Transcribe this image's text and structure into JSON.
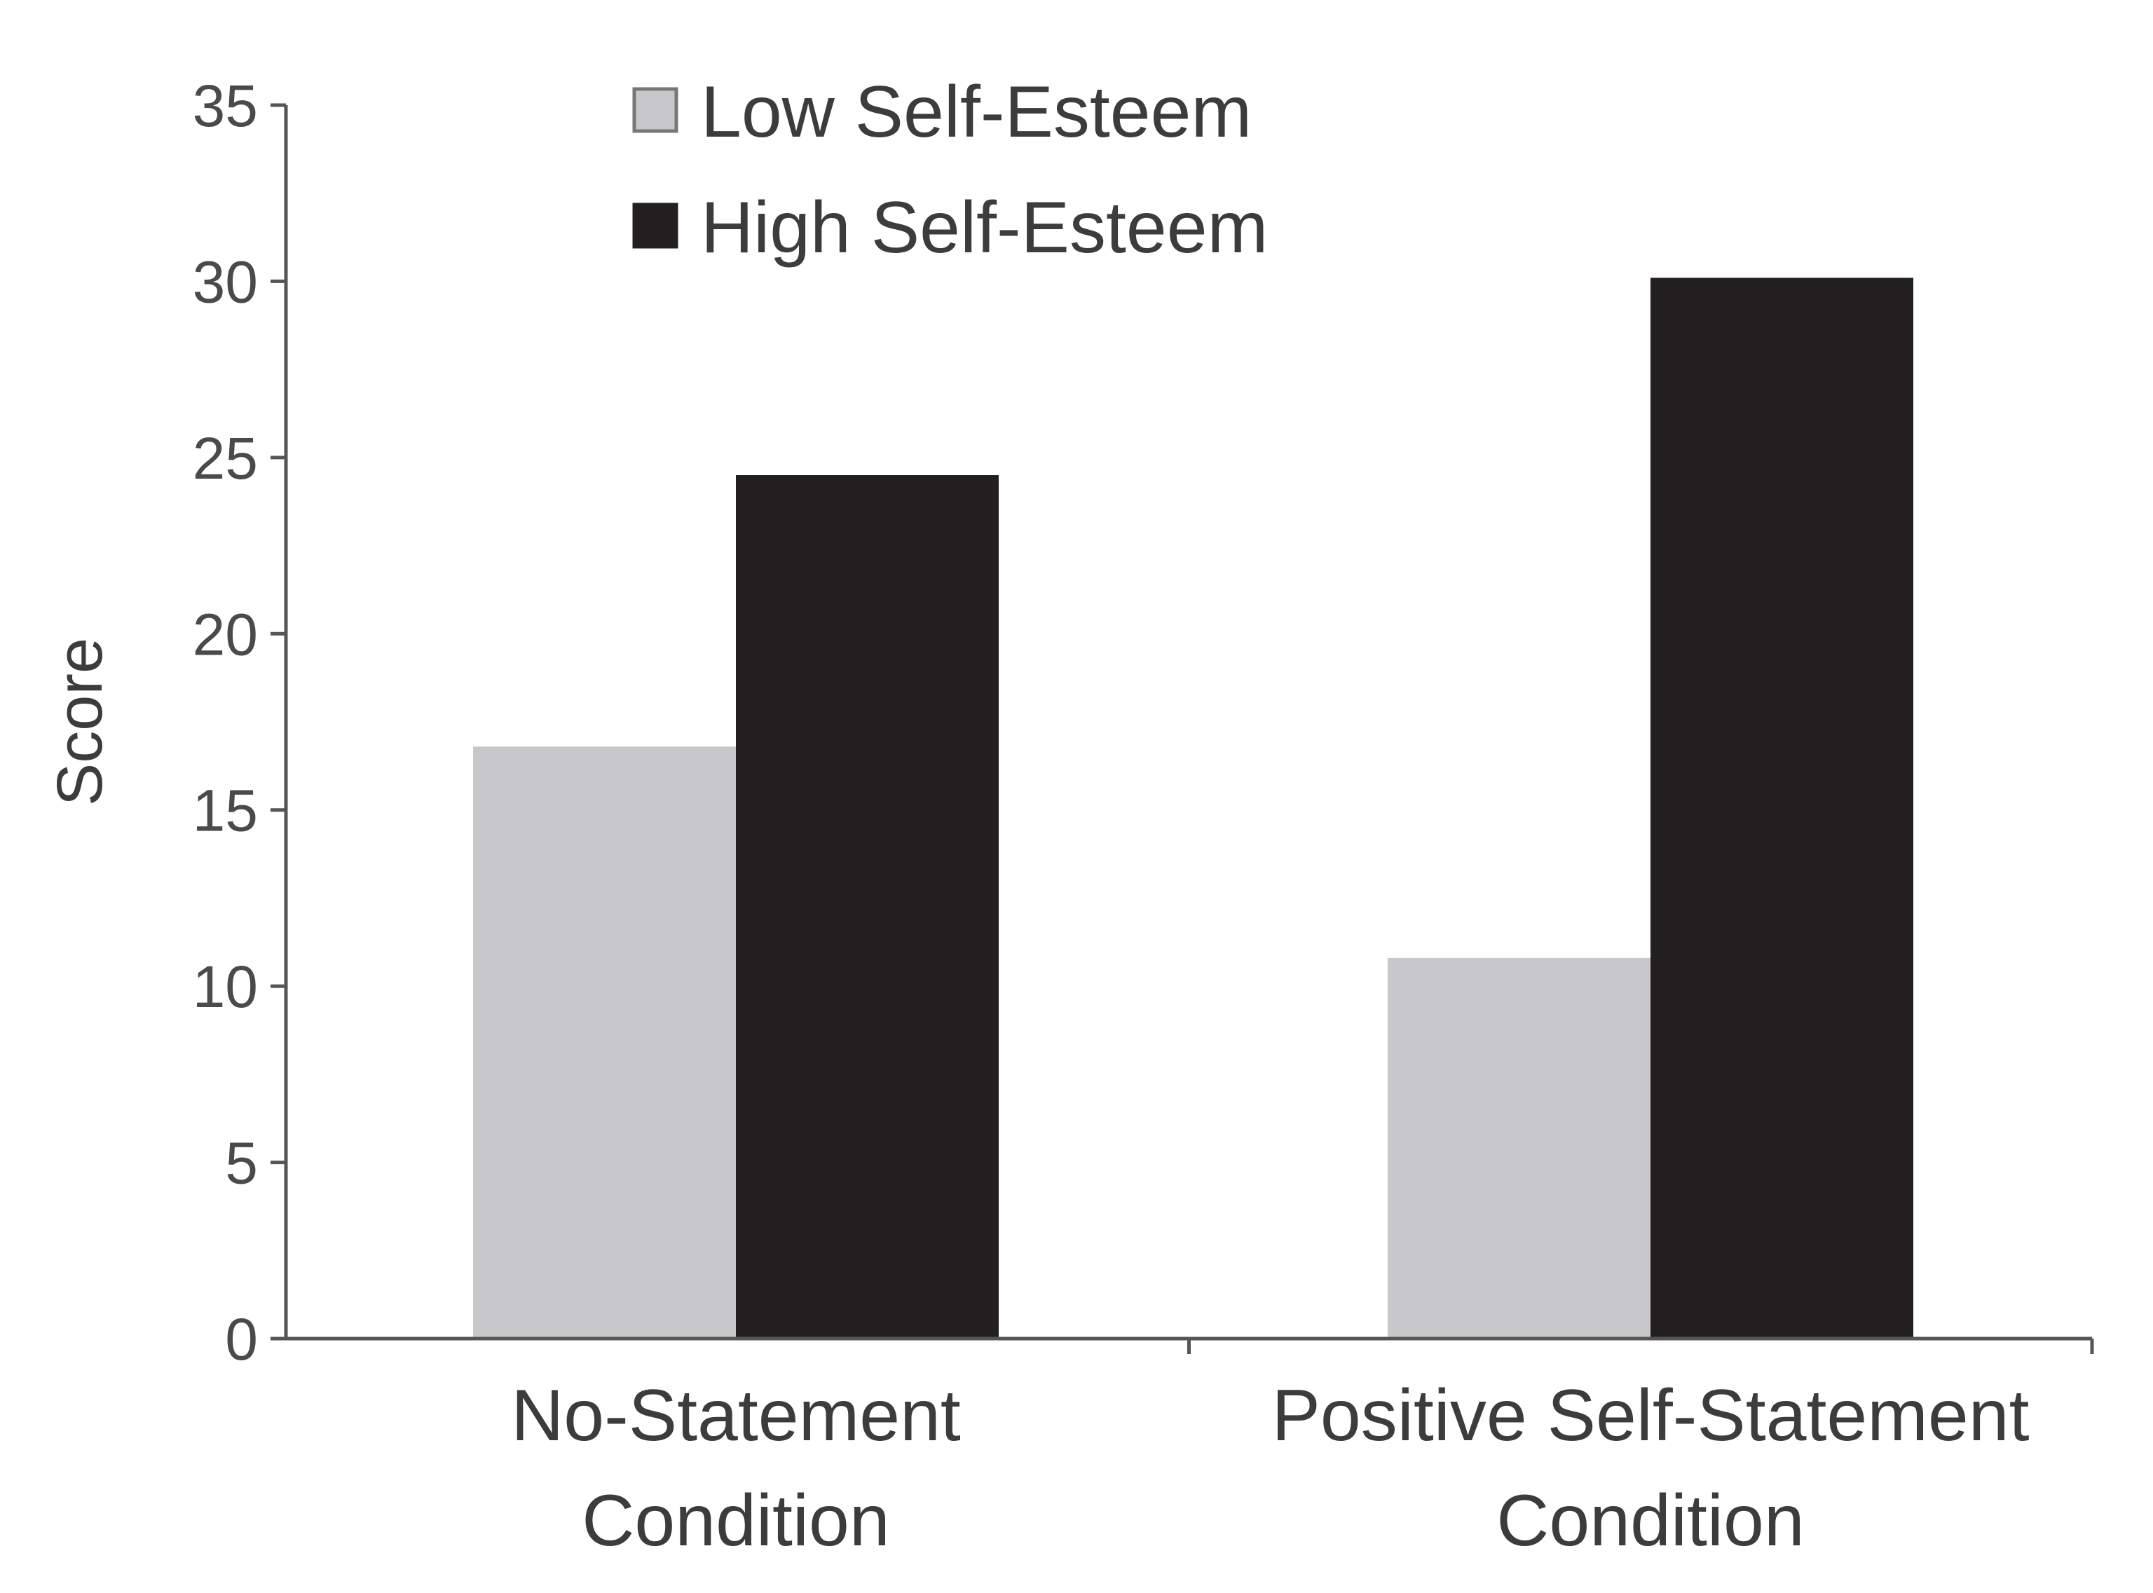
{
  "chart_data": {
    "type": "bar",
    "title": "",
    "xlabel": "",
    "ylabel": "Score",
    "ylim": [
      0,
      35
    ],
    "yticks": [
      0,
      5,
      10,
      15,
      20,
      25,
      30,
      35
    ],
    "categories": [
      [
        "No-Statement",
        "Condition"
      ],
      [
        "Positive Self-Statement",
        "Condition"
      ]
    ],
    "series": [
      {
        "name": "Low Self-Esteem",
        "values": [
          16.8,
          10.8
        ],
        "color": "#c8c8ca"
      },
      {
        "name": "High Self-Esteem",
        "values": [
          24.5,
          30.1
        ],
        "color": "#231f20"
      }
    ],
    "legend": "top-left",
    "grid": false
  }
}
